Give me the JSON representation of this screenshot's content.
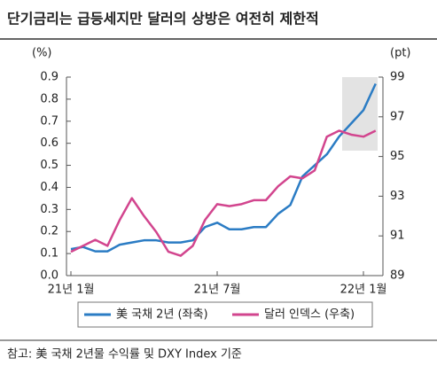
{
  "chart_data": {
    "type": "line",
    "title": "단기금리는 급등세지만 달러의 상방은 여전히 제한적",
    "y_label": "(%)",
    "y2_label": "(pt)",
    "source": "참고: 美 국채 2년물 수익률 및 DXY Index 기준",
    "categories": [
      "21년 1월",
      null,
      null,
      null,
      null,
      null,
      null,
      null,
      null,
      null,
      null,
      null,
      "21년 7월",
      null,
      null,
      null,
      null,
      null,
      null,
      null,
      null,
      null,
      null,
      null,
      "22년 1월",
      null
    ],
    "series": [
      {
        "name": "美 국채 2년 (좌축)",
        "color": "#2b7cc4",
        "values": [
          0.12,
          0.13,
          0.11,
          0.11,
          0.14,
          0.15,
          0.16,
          0.16,
          0.15,
          0.15,
          0.16,
          0.22,
          0.24,
          0.21,
          0.21,
          0.22,
          0.22,
          0.28,
          0.32,
          0.45,
          0.5,
          0.55,
          0.63,
          0.69,
          0.75,
          0.87
        ]
      },
      {
        "name": "달러 인덱스 (우축)",
        "color": "#d2458e",
        "axis": "y2",
        "values": [
          90.2,
          90.5,
          90.8,
          90.5,
          91.8,
          92.9,
          92.0,
          91.2,
          90.2,
          90.0,
          90.5,
          91.8,
          92.6,
          92.5,
          92.6,
          92.8,
          92.8,
          93.5,
          94.0,
          93.9,
          94.3,
          96.0,
          96.3,
          96.1,
          96.0,
          96.3
        ]
      }
    ],
    "ylim": [
      0,
      0.9
    ],
    "yticks": [
      {
        "value": 0,
        "label": "0.0"
      },
      0.1,
      0.2,
      0.3,
      0.4,
      0.5,
      0.6,
      0.7,
      0.8,
      0.9
    ],
    "y2lim": [
      89,
      99
    ],
    "y2ticks": [
      89,
      91,
      93,
      95,
      97,
      99
    ]
  }
}
